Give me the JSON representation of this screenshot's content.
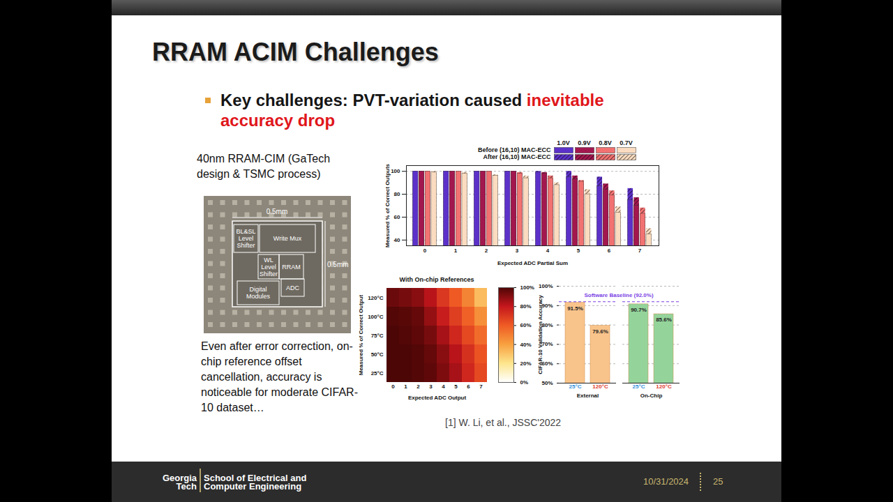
{
  "slide": {
    "title": "RRAM ACIM Challenges",
    "bullet": {
      "text": "Key challenges: PVT-variation caused ",
      "highlight": "inevitable accuracy drop"
    },
    "chip_caption": "40nm RRAM-CIM (GaTech design & TSMC process)",
    "die_labels": {
      "width": "0.5mm",
      "height": "0.5mm",
      "blocks": [
        "BL&SL Level Shifter",
        "Write Mux",
        "WL Level Shifter",
        "RRAM",
        "ADC",
        "Digital Modules"
      ]
    },
    "note": "Even after error correction, on-chip reference offset cancellation, accuracy is noticeable for moderate CIFAR-10 dataset…",
    "citation": "[1] W. Li, et al., JSSC'2022",
    "footer": {
      "logo": [
        "Georgia",
        "Tech"
      ],
      "school": [
        "School of Electrical and",
        "Computer Engineering"
      ],
      "date": "10/31/2024",
      "page": 25
    }
  },
  "chart_data": [
    {
      "type": "bar",
      "x_label": "Expected ADC Partial Sum",
      "y_label": "Measured % of Correct Outputs",
      "categories": [
        0,
        1,
        2,
        3,
        4,
        5,
        6,
        7
      ],
      "ylim": [
        35,
        105
      ],
      "yticks": [
        40,
        60,
        80,
        100
      ],
      "grid": true,
      "legend": "top-right",
      "legend_rows": [
        "Before (16,10) MAC-ECC",
        "After (16,10) MAC-ECC"
      ],
      "series": [
        {
          "name": "1.0V",
          "color": "#5c31c9",
          "values": [
            100,
            100,
            100,
            100,
            99,
            95,
            87,
            75
          ],
          "values_after": [
            100,
            100,
            100,
            100,
            100,
            100,
            95,
            85
          ]
        },
        {
          "name": "0.9V",
          "color": "#a3174f",
          "values": [
            100,
            100,
            100,
            100,
            98,
            93,
            84,
            70
          ],
          "values_after": [
            100,
            100,
            100,
            100,
            99,
            96,
            89,
            77
          ]
        },
        {
          "name": "0.8V",
          "color": "#f27272",
          "values": [
            100,
            100,
            100,
            98,
            94,
            91,
            79,
            63
          ],
          "values_after": [
            100,
            100,
            100,
            99,
            96,
            92,
            83,
            68
          ]
        },
        {
          "name": "0.7V",
          "color": "#fbdcc0",
          "values": [
            99,
            98,
            96,
            94,
            88,
            80,
            64,
            45
          ],
          "values_after": [
            100,
            99,
            97,
            96,
            90,
            84,
            69,
            50
          ]
        }
      ]
    },
    {
      "type": "heatmap",
      "title": "With On-chip References",
      "x_label": "Expected ADC Output",
      "y_label": "Measured % of Correct Output",
      "x": [
        0,
        1,
        2,
        3,
        4,
        5,
        6,
        7
      ],
      "y": [
        "120°C",
        "100°C",
        "75°C",
        "50°C",
        "25°C"
      ],
      "cells": [
        [
          95,
          93,
          90,
          82,
          70,
          60,
          48,
          32
        ],
        [
          99,
          98,
          96,
          88,
          78,
          68,
          58,
          45
        ],
        [
          100,
          99,
          97,
          93,
          85,
          75,
          65,
          55
        ],
        [
          100,
          100,
          99,
          96,
          90,
          82,
          72,
          62
        ],
        [
          100,
          100,
          99,
          97,
          92,
          85,
          75,
          65
        ]
      ],
      "colorbar": {
        "range": [
          0,
          100
        ],
        "ticks": [
          {
            "value": 0,
            "label": "0%"
          },
          {
            "value": 20,
            "label": "20%"
          },
          {
            "value": 40,
            "label": "40%"
          },
          {
            "value": 60,
            "label": "60%"
          },
          {
            "value": 80,
            "label": "80%"
          },
          {
            "value": 100,
            "label": "100%"
          }
        ]
      }
    },
    {
      "type": "bar",
      "y_label": "CIFAR-10 Validation Accuracy",
      "ylim": [
        50,
        100
      ],
      "yticks": [
        {
          "value": 50,
          "label": "50%"
        },
        {
          "value": 60,
          "label": "60%"
        },
        {
          "value": 70,
          "label": "70%"
        },
        {
          "value": 80,
          "label": "80%"
        },
        {
          "value": 90,
          "label": "90%"
        },
        {
          "value": 100,
          "label": "100%"
        }
      ],
      "grid": true,
      "data_labels": true,
      "reference": {
        "value": 92.0,
        "label": "Software Baseline (92.0%)"
      },
      "series": [
        {
          "name": "External",
          "color": "#f9c48b",
          "categories": [
            "25°C",
            "120°C"
          ],
          "values": [
            91.5,
            79.6
          ],
          "value_labels": [
            "91.5%",
            "79.6%"
          ]
        },
        {
          "name": "On-Chip",
          "color": "#94d49b",
          "categories": [
            "25°C",
            "120°C"
          ],
          "values": [
            90.7,
            85.6
          ],
          "value_labels": [
            "90.7%",
            "85.6%"
          ]
        }
      ]
    }
  ]
}
